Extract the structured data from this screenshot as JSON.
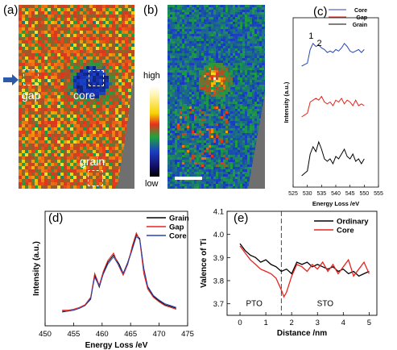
{
  "figure": {
    "panels": {
      "a": {
        "letter": "(a)",
        "labels": {
          "gap": "gap",
          "core": "core",
          "grain": "grain"
        }
      },
      "b": {
        "letter": "(b)"
      },
      "colorbar": {
        "high": "high",
        "low": "low"
      },
      "c": {
        "letter": "(c)",
        "peak1": "1",
        "peak2": "2"
      },
      "d": {
        "letter": "(d)"
      },
      "e": {
        "letter": "(e)",
        "region_left": "PTO",
        "region_right": "STO"
      }
    },
    "colors": {
      "grain": "#000000",
      "gap": "#e8231d",
      "core": "#2745b5",
      "arrow": "#2d5aa8"
    }
  },
  "chart_data": [
    {
      "id": "c",
      "type": "line",
      "xlabel": "Energy Loss /eV",
      "ylabel": "Intensity (a.u.)",
      "xlim": [
        525,
        555
      ],
      "xticks": [
        "525",
        "530",
        "535",
        "540",
        "545",
        "550",
        "555"
      ],
      "legend_position": "top-right",
      "series": [
        {
          "name": "Core",
          "color": "#2745b5",
          "offset": 2.0,
          "x": [
            528,
            529,
            530,
            531,
            532,
            533,
            534,
            535,
            536,
            537,
            538,
            539,
            540,
            541,
            542,
            543,
            544,
            545,
            546,
            547,
            548,
            549,
            550
          ],
          "y": [
            0.0,
            0.05,
            0.1,
            0.55,
            0.75,
            0.65,
            0.7,
            0.6,
            0.55,
            0.45,
            0.5,
            0.45,
            0.55,
            0.5,
            0.6,
            0.75,
            0.65,
            0.5,
            0.45,
            0.5,
            0.55,
            0.45,
            0.55
          ]
        },
        {
          "name": "Gap",
          "color": "#e8231d",
          "offset": 1.0,
          "x": [
            528,
            529,
            530,
            531,
            532,
            533,
            534,
            535,
            536,
            537,
            538,
            539,
            540,
            541,
            542,
            543,
            544,
            545,
            546,
            547,
            548,
            549,
            550
          ],
          "y": [
            0.0,
            0.05,
            0.1,
            0.4,
            0.45,
            0.5,
            0.45,
            0.55,
            0.4,
            0.35,
            0.4,
            0.3,
            0.45,
            0.4,
            0.5,
            0.35,
            0.45,
            0.4,
            0.3,
            0.45,
            0.3,
            0.35,
            0.3
          ]
        },
        {
          "name": "Grain",
          "color": "#000000",
          "offset": 0.0,
          "x": [
            528,
            529,
            530,
            531,
            532,
            533,
            534,
            535,
            536,
            537,
            538,
            539,
            540,
            541,
            542,
            543,
            544,
            545,
            546,
            547,
            548,
            549,
            550
          ],
          "y": [
            0.0,
            0.05,
            0.1,
            0.45,
            0.6,
            0.5,
            0.7,
            0.55,
            0.35,
            0.3,
            0.35,
            0.25,
            0.4,
            0.35,
            0.45,
            0.55,
            0.4,
            0.35,
            0.45,
            0.3,
            0.35,
            0.25,
            0.35
          ]
        }
      ]
    },
    {
      "id": "d",
      "type": "line",
      "xlabel": "Energy Loss /eV",
      "ylabel": "Intensity (a.u.)",
      "xlim": [
        450,
        475
      ],
      "xticks": [
        "450",
        "455",
        "460",
        "465",
        "470",
        "475"
      ],
      "legend_position": "top-right",
      "series": [
        {
          "name": "Grain",
          "color": "#000000",
          "x": [
            453,
            454,
            455,
            456,
            457,
            458,
            458.7,
            459.5,
            460.2,
            461,
            462,
            463,
            463.7,
            464.5,
            465.3,
            466,
            466.6,
            467.3,
            468,
            469,
            470,
            471,
            472,
            473
          ],
          "y": [
            0.08,
            0.09,
            0.1,
            0.12,
            0.15,
            0.22,
            0.48,
            0.35,
            0.5,
            0.62,
            0.7,
            0.6,
            0.5,
            0.62,
            0.78,
            0.92,
            0.88,
            0.55,
            0.35,
            0.25,
            0.2,
            0.16,
            0.14,
            0.12
          ]
        },
        {
          "name": "Gap",
          "color": "#e8231d",
          "x": [
            453,
            454,
            455,
            456,
            457,
            458,
            458.7,
            459.5,
            460.2,
            461,
            462,
            463,
            463.7,
            464.5,
            465.3,
            466,
            466.6,
            467.3,
            468,
            469,
            470,
            471,
            472,
            473
          ],
          "y": [
            0.1,
            0.1,
            0.11,
            0.13,
            0.16,
            0.24,
            0.5,
            0.37,
            0.52,
            0.64,
            0.72,
            0.57,
            0.48,
            0.6,
            0.8,
            0.94,
            0.86,
            0.5,
            0.33,
            0.24,
            0.19,
            0.15,
            0.13,
            0.11
          ]
        },
        {
          "name": "Core",
          "color": "#2745b5",
          "x": [
            453,
            454,
            455,
            456,
            457,
            458,
            458.7,
            459.5,
            460.2,
            461,
            462,
            463,
            463.7,
            464.5,
            465.3,
            466,
            466.6,
            467.3,
            468,
            469,
            470,
            471,
            472,
            473
          ],
          "y": [
            0.09,
            0.09,
            0.1,
            0.12,
            0.15,
            0.23,
            0.46,
            0.36,
            0.49,
            0.6,
            0.68,
            0.58,
            0.5,
            0.61,
            0.76,
            0.9,
            0.87,
            0.56,
            0.36,
            0.26,
            0.21,
            0.17,
            0.15,
            0.13
          ]
        }
      ]
    },
    {
      "id": "e",
      "type": "line",
      "xlabel": "Distance /nm",
      "ylabel": "Valence of Ti",
      "xlim": [
        -0.5,
        5.3
      ],
      "ylim": [
        3.65,
        4.1
      ],
      "xticks": [
        "0",
        "1",
        "2",
        "3",
        "4",
        "5"
      ],
      "yticks": [
        "3.7",
        "3.8",
        "3.9",
        "4.0",
        "4.1"
      ],
      "legend_position": "top-right",
      "dashed_line_x": 1.6,
      "series": [
        {
          "name": "Ordinary",
          "color": "#000000",
          "x": [
            0,
            0.2,
            0.4,
            0.6,
            0.8,
            1.0,
            1.2,
            1.4,
            1.6,
            1.8,
            2.0,
            2.2,
            2.4,
            2.6,
            2.8,
            3.0,
            3.2,
            3.4,
            3.6,
            3.8,
            4.0,
            4.2,
            4.4,
            4.6,
            4.8,
            5.0
          ],
          "y": [
            3.96,
            3.93,
            3.91,
            3.9,
            3.88,
            3.89,
            3.87,
            3.86,
            3.84,
            3.85,
            3.83,
            3.88,
            3.87,
            3.88,
            3.86,
            3.87,
            3.86,
            3.85,
            3.86,
            3.84,
            3.85,
            3.83,
            3.84,
            3.82,
            3.83,
            3.84
          ]
        },
        {
          "name": "Core",
          "color": "#e8231d",
          "x": [
            0,
            0.2,
            0.4,
            0.6,
            0.8,
            1.0,
            1.2,
            1.4,
            1.6,
            1.7,
            1.8,
            2.0,
            2.2,
            2.4,
            2.6,
            2.8,
            3.0,
            3.2,
            3.4,
            3.6,
            3.8,
            4.0,
            4.2,
            4.4,
            4.6,
            4.8,
            5.0
          ],
          "y": [
            3.95,
            3.92,
            3.89,
            3.87,
            3.85,
            3.84,
            3.83,
            3.81,
            3.76,
            3.73,
            3.75,
            3.82,
            3.87,
            3.86,
            3.84,
            3.87,
            3.85,
            3.88,
            3.84,
            3.87,
            3.83,
            3.86,
            3.89,
            3.82,
            3.85,
            3.88,
            3.83
          ]
        }
      ]
    }
  ]
}
